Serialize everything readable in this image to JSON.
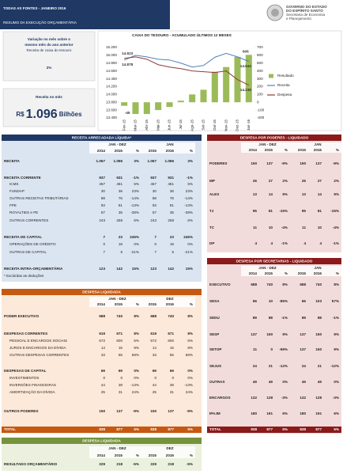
{
  "header": {
    "title": "TODAS AS FONTES - JANEIRO 2016",
    "subtitle": "RESUMO DA EXECUÇÃO ORÇAMENTÁRIA",
    "logo_lines": [
      "GOVERNO DO ESTADO",
      "DO ESPÍRITO SANTO",
      "Secretaria de Economia",
      "e Planejamento"
    ]
  },
  "kpis": [
    {
      "lines": [
        "Variação no mês sobre o",
        "mesmo mês do ano anterior"
      ],
      "caption": "Receita de caixa do tesouro",
      "value": "3%"
    },
    {
      "caption": "Receita no mês",
      "prefix": "R$",
      "value": "1.096",
      "suffix": "Bilhões"
    }
  ],
  "chart_data": {
    "type": "combo",
    "title": "CAIXA DO TESOURO - ACUMULADO ÚLTIMOS 12 MESES",
    "categories": [
      "Fev-15",
      "Mar-15",
      "Abr-15",
      "Mai-15",
      "Jun-15",
      "Jul-15",
      "Ago-15",
      "Set-15",
      "Out-15",
      "Nov-15",
      "Dez-15",
      "Jan-16"
    ],
    "series": [
      {
        "name": "Resultado",
        "type": "bar",
        "axis": "y2",
        "color": "#9bbb59",
        "values": [
          -45,
          -150,
          -150,
          -100,
          -60,
          20,
          100,
          160,
          390,
          450,
          580,
          606
        ],
        "value_labels": [
          "-45",
          null,
          null,
          null,
          null,
          null,
          null,
          null,
          null,
          null,
          null,
          "606"
        ]
      },
      {
        "name": "Receita",
        "type": "line",
        "color": "#4f81bd",
        "values": [
          14878,
          15000,
          14960,
          14900,
          14880,
          14800,
          14700,
          14740,
          14950,
          15050,
          14960,
          14844
        ],
        "value_labels": [
          "14.878",
          null,
          null,
          null,
          null,
          null,
          null,
          null,
          null,
          null,
          null,
          "14.844"
        ]
      },
      {
        "name": "Despesa",
        "type": "line",
        "color": "#953735",
        "values": [
          14923,
          14960,
          14900,
          14760,
          14700,
          14660,
          14600,
          14580,
          14560,
          14600,
          14380,
          14238
        ],
        "value_labels": [
          "14.923",
          null,
          null,
          null,
          null,
          null,
          null,
          null,
          null,
          null,
          null,
          "14.238"
        ]
      }
    ],
    "ylim": [
      13400,
      15200
    ],
    "yticks": [
      {
        "value": 13400,
        "label": "13.400"
      },
      {
        "value": 13600,
        "label": "13.600"
      },
      {
        "value": 13800,
        "label": "13.800"
      },
      {
        "value": 14000,
        "label": "14.000"
      },
      {
        "value": 14200,
        "label": "14.200"
      },
      {
        "value": 14400,
        "label": "14.400"
      },
      {
        "value": 14600,
        "label": "14.600"
      },
      {
        "value": 14800,
        "label": "14.800"
      },
      {
        "value": 15000,
        "label": "15.000"
      },
      {
        "value": 15200,
        "label": "15.200"
      }
    ],
    "y2lim": [
      -200,
      700
    ],
    "y2ticks": [
      -200,
      -100,
      0,
      100,
      200,
      300,
      400,
      500,
      600,
      700
    ],
    "legend": "right",
    "grid": false
  },
  "receita": {
    "title": "RECEITA ARRECADADA LÍQUIDA*",
    "group_headers": [
      "JAN - DEZ",
      "JAN"
    ],
    "col_headers": [
      "2014",
      "2015",
      "%",
      "2015",
      "2016",
      "%"
    ],
    "rows": [
      {
        "label": "RECEITA",
        "values": [
          "1.067",
          "1.096",
          "3%",
          "1.067",
          "1.096",
          "3%"
        ]
      },
      {
        "label": "RECEITA CORRENTE",
        "values": [
          "937",
          "931",
          "-1%",
          "937",
          "931",
          "-1%"
        ]
      },
      {
        "label": "ICMS",
        "values": [
          "457",
          "481",
          "5%",
          "457",
          "481",
          "5%"
        ]
      },
      {
        "label": "FUNDAP",
        "values": [
          "30",
          "36",
          "23%",
          "30",
          "36",
          "23%"
        ]
      },
      {
        "label": "OUTRAS RECEITAS TRIBUTÁRIAS",
        "values": [
          "88",
          "76",
          "-14%",
          "88",
          "76",
          "-14%"
        ]
      },
      {
        "label": "FPE",
        "values": [
          "93",
          "81",
          "-13%",
          "93",
          "81",
          "-13%"
        ]
      },
      {
        "label": "ROYALTIES e PE",
        "values": [
          "57",
          "35",
          "-38%",
          "57",
          "35",
          "-38%"
        ]
      },
      {
        "label": "OUTRAS CORRENTES",
        "values": [
          "243",
          "258",
          "6%",
          "243",
          "258",
          "6%"
        ]
      },
      {
        "label": "RECEITA DE CAPITAL",
        "values": [
          "7",
          "23",
          "245%",
          "7",
          "23",
          "245%"
        ]
      },
      {
        "label": "OPERAÇÕES DE CRÉDITO",
        "values": [
          "0",
          "18",
          "0%",
          "0",
          "18",
          "0%"
        ]
      },
      {
        "label": "OUTRAS DE CAPITAL",
        "values": [
          "7",
          "5",
          "-21%",
          "7",
          "5",
          "-21%"
        ]
      },
      {
        "label": "RECEITA INTRA-ORÇAMENTÁRIA",
        "values": [
          "123",
          "142",
          "15%",
          "123",
          "142",
          "15%"
        ]
      }
    ],
    "note": "* Excluídas as deduções"
  },
  "despesa": {
    "title": "DESPESA LIQUIDADA",
    "group_headers": [
      "JAN - DEZ",
      "DEZ"
    ],
    "col_headers": [
      "2014",
      "2015",
      "%",
      "2015",
      "2016",
      "%"
    ],
    "rows": [
      {
        "label": "PODER EXECUTIVO",
        "values": [
          "688",
          "740",
          "8%",
          "688",
          "740",
          "8%"
        ]
      },
      {
        "label": "DESPESAS CORRENTES",
        "values": [
          "619",
          "671",
          "8%",
          "619",
          "671",
          "8%"
        ]
      },
      {
        "label": "PESSOAL E ENCARGOS SOCIAIS",
        "values": [
          "572",
          "600",
          "5%",
          "572",
          "600",
          "5%"
        ]
      },
      {
        "label": "JUROS E ENCARGOS DA DÍVIDA",
        "values": [
          "14",
          "15",
          "8%",
          "14",
          "15",
          "8%"
        ]
      },
      {
        "label": "OUTRAS DESPESAS CORRENTES",
        "values": [
          "33",
          "55",
          "68%",
          "33",
          "55",
          "68%"
        ]
      },
      {
        "label": "DESPESAS DE CAPITAL",
        "values": [
          "69",
          "69",
          "0%",
          "69",
          "69",
          "0%"
        ]
      },
      {
        "label": "INVESTIMENTOS",
        "values": [
          "0",
          "0",
          "0%",
          "0",
          "0",
          "0%"
        ]
      },
      {
        "label": "INVERSÕES FINANCEIRAS",
        "values": [
          "44",
          "38",
          "-13%",
          "44",
          "38",
          "-13%"
        ]
      },
      {
        "label": "AMORTIZAÇÃO DA DÍVIDA",
        "values": [
          "25",
          "31",
          "24%",
          "25",
          "31",
          "24%"
        ]
      },
      {
        "label": "OUTROS PODERES",
        "values": [
          "150",
          "137",
          "-9%",
          "150",
          "137",
          "-9%"
        ]
      },
      {
        "label": "TOTAL",
        "values": [
          "838",
          "877",
          "5%",
          "838",
          "877",
          "5%"
        ]
      }
    ]
  },
  "resultado": {
    "title": "DESPESA LIQUIDADA",
    "group_headers": [
      "JAN - DEZ",
      "DEZ"
    ],
    "col_headers": [
      "2014",
      "2015",
      "%",
      "2015",
      "2016",
      "%"
    ],
    "rows": [
      {
        "label": "RESULTADO ORÇAMENTÁRIO",
        "values": [
          "229",
          "218",
          "-5%",
          "229",
          "218",
          "-5%"
        ]
      }
    ]
  },
  "poderes": {
    "title": "DESPESA POR PODERES - LIQUIDADO",
    "group_headers": [
      "JAN - DEZ",
      "JAN"
    ],
    "col_headers": [
      "2014",
      "2015",
      "%",
      "2015",
      "2016",
      "%"
    ],
    "rows": [
      {
        "label": "PODERES",
        "values": [
          "150",
          "137",
          "-9%",
          "150",
          "137",
          "-9%"
        ]
      },
      {
        "label": "MP",
        "values": [
          "26",
          "27",
          "2%",
          "26",
          "27",
          "2%"
        ]
      },
      {
        "label": "ALES",
        "values": [
          "13",
          "14",
          "9%",
          "13",
          "14",
          "9%"
        ]
      },
      {
        "label": "TJ",
        "values": [
          "95",
          "81",
          "-15%",
          "95",
          "81",
          "-15%"
        ]
      },
      {
        "label": "TC",
        "values": [
          "11",
          "10",
          "-4%",
          "11",
          "10",
          "-4%"
        ]
      },
      {
        "label": "DP",
        "values": [
          "4",
          "4",
          "-1%",
          "4",
          "4",
          "-1%"
        ]
      }
    ]
  },
  "secretarias": {
    "title": "DESPESA POR SECRETARIAS - LIQUIDADO",
    "group_headers": [
      "JAN - DEZ",
      "JAN"
    ],
    "col_headers": [
      "2014",
      "2015",
      "%",
      "2015",
      "2016",
      "%"
    ],
    "rows": [
      {
        "label": "EXECUTIVO",
        "values": [
          "688",
          "740",
          "8%",
          "688",
          "740",
          "8%"
        ]
      },
      {
        "label": "SESA",
        "values": [
          "66",
          "10",
          "-85%",
          "66",
          "103",
          "57%"
        ]
      },
      {
        "label": "SEDU",
        "values": [
          "89",
          "88",
          "-1%",
          "89",
          "88",
          "-1%"
        ]
      },
      {
        "label": "SESP",
        "values": [
          "137",
          "150",
          "9%",
          "137",
          "150",
          "9%"
        ]
      },
      {
        "label": "SETOP",
        "values": [
          "11",
          "0",
          "-99%",
          "137",
          "150",
          "9%"
        ]
      },
      {
        "label": "SEJUS",
        "values": [
          "24",
          "21",
          "-12%",
          "24",
          "21",
          "-12%"
        ]
      },
      {
        "label": "OUTRAS",
        "values": [
          "49",
          "49",
          "0%",
          "49",
          "49",
          "0%"
        ]
      },
      {
        "label": "ENCARGOS",
        "values": [
          "132",
          "128",
          "-3%",
          "132",
          "128",
          "-3%"
        ]
      },
      {
        "label": "IPAJM",
        "values": [
          "180",
          "191",
          "6%",
          "180",
          "191",
          "6%"
        ]
      },
      {
        "label": "TOTAL",
        "values": [
          "838",
          "877",
          "5%",
          "838",
          "877",
          "5%"
        ]
      }
    ]
  }
}
